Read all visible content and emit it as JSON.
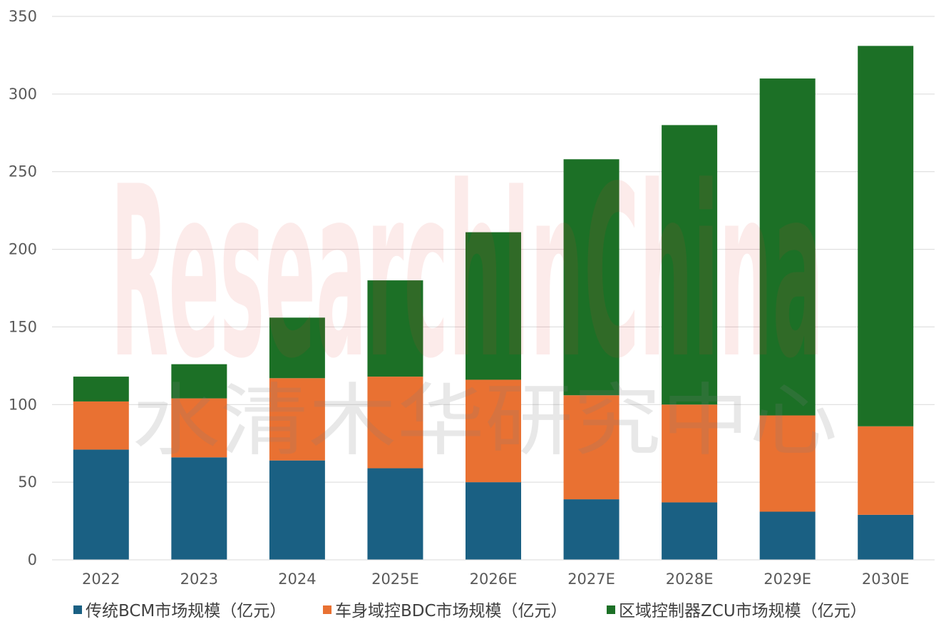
{
  "chart_data": {
    "type": "bar",
    "stacked": true,
    "categories": [
      "2022",
      "2023",
      "2024",
      "2025E",
      "2026E",
      "2027E",
      "2028E",
      "2029E",
      "2030E"
    ],
    "series": [
      {
        "name": "传统BCM市场规模（亿元）",
        "color": "#1a6083",
        "values": [
          71,
          66,
          64,
          59,
          50,
          39,
          37,
          31,
          29
        ]
      },
      {
        "name": "车身域控BDC市场规模（亿元）",
        "color": "#e97132",
        "values": [
          31,
          38,
          53,
          59,
          66,
          67,
          63,
          62,
          57
        ]
      },
      {
        "name": "区域控制器ZCU市场规模（亿元）",
        "color": "#1c7026",
        "values": [
          16,
          22,
          39,
          62,
          95,
          152,
          180,
          217,
          245
        ]
      }
    ],
    "yticks": [
      "0",
      "50",
      "100",
      "150",
      "200",
      "250",
      "300",
      "350"
    ],
    "ylim": [
      0,
      350
    ],
    "grid": true,
    "legend_position": "bottom",
    "watermark": {
      "latin": "ResearchInChina",
      "chinese": "水清木华研究中心"
    }
  }
}
